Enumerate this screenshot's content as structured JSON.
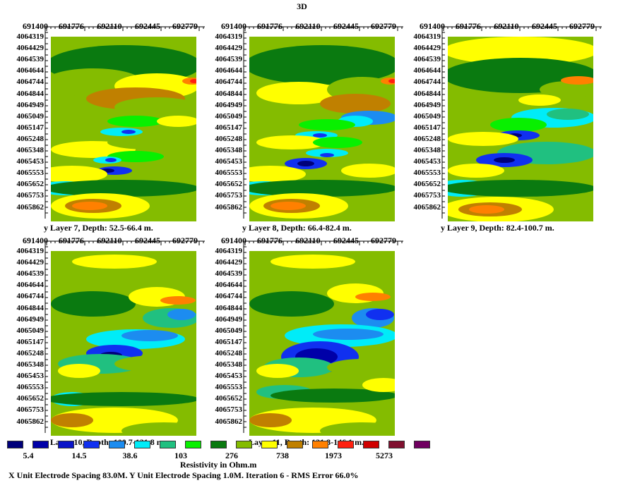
{
  "title": "3D",
  "x_ticks": [
    "691400",
    "691776",
    "692110",
    "692445",
    "692779"
  ],
  "y_ticks": [
    "4064319",
    "4064429",
    "4064539",
    "4064644",
    "4064744",
    "4064844",
    "4064949",
    "4065049",
    "4065147",
    "4065248",
    "4065348",
    "4065453",
    "4065553",
    "4065652",
    "4065753",
    "4065862"
  ],
  "panels": [
    {
      "caption": "y Layer 7, Depth: 52.5-66.4 m."
    },
    {
      "caption": "y Layer 8, Depth: 66.4-82.4 m."
    },
    {
      "caption": "y Layer 9, Depth: 82.4-100.7 m."
    },
    {
      "caption": "y Layer 10, Depth: 100.7-121.8 m."
    },
    {
      "caption": "y Layer 11, Depth: 121.8-146.1 m."
    }
  ],
  "legend": {
    "colors": [
      "#00007a",
      "#0000a8",
      "#0a14c8",
      "#1030f0",
      "#1c8cf0",
      "#00ecf8",
      "#20c080",
      "#08f000",
      "#0a7a10",
      "#84bc00",
      "#ffff00",
      "#c08000",
      "#ff8000",
      "#ff2010",
      "#d00000",
      "#801030",
      "#700060"
    ],
    "labels": [
      "5.4",
      "14.5",
      "38.6",
      "103",
      "276",
      "738",
      "1973",
      "5273"
    ],
    "title": "Resistivity in Ohm.m"
  },
  "footer": "X Unit Electrode Spacing 83.0M.  Y Unit Electrode Spacing 1.0M.    Iteration 6 - RMS Error 66.0%",
  "chart_data": {
    "type": "heatmap",
    "title": "3D",
    "xlabel": "",
    "ylabel": "y",
    "x_ticks": [
      691400,
      691776,
      692110,
      692445,
      692779
    ],
    "y_ticks": [
      4064319,
      4064429,
      4064539,
      4064644,
      4064744,
      4064844,
      4064949,
      4065049,
      4065147,
      4065248,
      4065348,
      4065453,
      4065553,
      4065652,
      4065753,
      4065862
    ],
    "colorbar": {
      "unit": "Ohm.m",
      "labels": [
        5.4,
        14.5,
        38.6,
        103,
        276,
        738,
        1973,
        5273
      ]
    },
    "layers": [
      {
        "layer": 7,
        "depth_min": 52.5,
        "depth_max": 66.4
      },
      {
        "layer": 8,
        "depth_min": 66.4,
        "depth_max": 82.4
      },
      {
        "layer": 9,
        "depth_min": 82.4,
        "depth_max": 100.7
      },
      {
        "layer": 10,
        "depth_min": 100.7,
        "depth_max": 121.8
      },
      {
        "layer": 11,
        "depth_min": 121.8,
        "depth_max": 146.1
      }
    ],
    "spacing": {
      "x_unit_electrode_spacing_m": 83.0,
      "y_unit_electrode_spacing_m": 1.0
    },
    "iteration": 6,
    "rms_error_percent": 66.0
  }
}
